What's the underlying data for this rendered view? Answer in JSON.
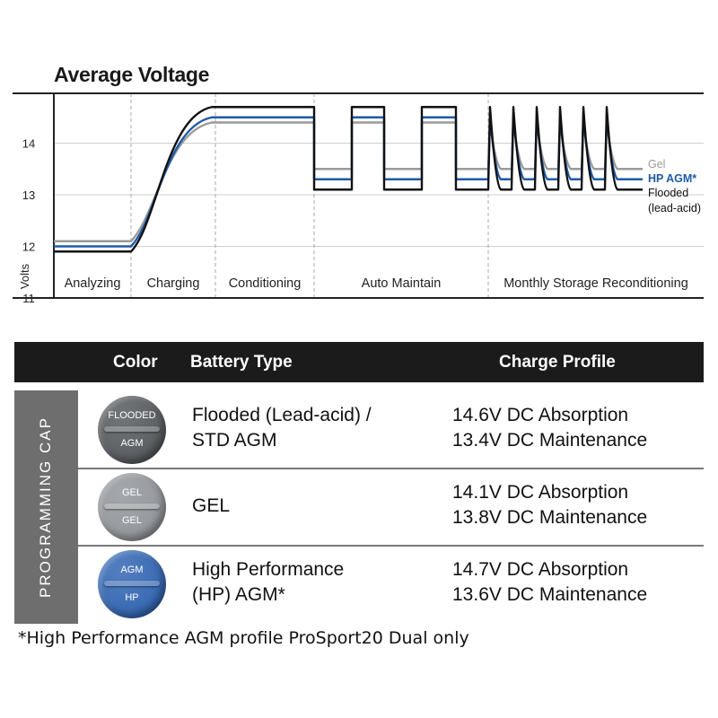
{
  "chart_data": {
    "type": "line",
    "title": "Average Voltage",
    "ylabel": "Volts",
    "ylim": [
      11,
      14.9
    ],
    "yticks": [
      11,
      12,
      13,
      14
    ],
    "phases": [
      "Analyzing",
      "Charging",
      "Conditioning",
      "Auto Maintain",
      "Monthly Storage Reconditioning"
    ],
    "series": [
      {
        "name": "Gel",
        "color": "#9a9a9a",
        "start": 12.1,
        "peak": 14.4,
        "maintain": 13.5
      },
      {
        "name": "HP AGM*",
        "color": "#1d5aa8",
        "start": 12.0,
        "peak": 14.5,
        "maintain": 13.3
      },
      {
        "name": "Flooded (lead-acid)",
        "color": "#111111",
        "start": 11.9,
        "peak": 14.7,
        "maintain": 13.1
      }
    ],
    "legend": [
      "Gel",
      "HP AGM*",
      "Flooded",
      "(lead-acid)"
    ]
  },
  "table": {
    "headers": {
      "color": "Color",
      "type": "Battery Type",
      "profile": "Charge Profile"
    },
    "side_label": "PROGRAMMING CAP",
    "rows": [
      {
        "cap_top": "FLOODED",
        "cap_bottom": "AGM",
        "cap_color": "#4f5357",
        "type_line1": "Flooded (Lead-acid) /",
        "type_line2": "STD AGM",
        "profile_line1": "14.6V DC Absorption",
        "profile_line2": "13.4V DC Maintenance"
      },
      {
        "cap_top": "GEL",
        "cap_bottom": "GEL",
        "cap_color": "#8d9297",
        "type_line1": "GEL",
        "type_line2": "",
        "profile_line1": "14.1V DC Absorption",
        "profile_line2": "13.8V DC Maintenance"
      },
      {
        "cap_top": "AGM",
        "cap_bottom": "HP",
        "cap_color": "#2a5fae",
        "type_line1": "High Performance",
        "type_line2": "(HP) AGM*",
        "profile_line1": "14.7V DC Absorption",
        "profile_line2": "13.6V DC Maintenance"
      }
    ]
  },
  "footnote": "*High Performance AGM profile ProSport20 Dual only"
}
